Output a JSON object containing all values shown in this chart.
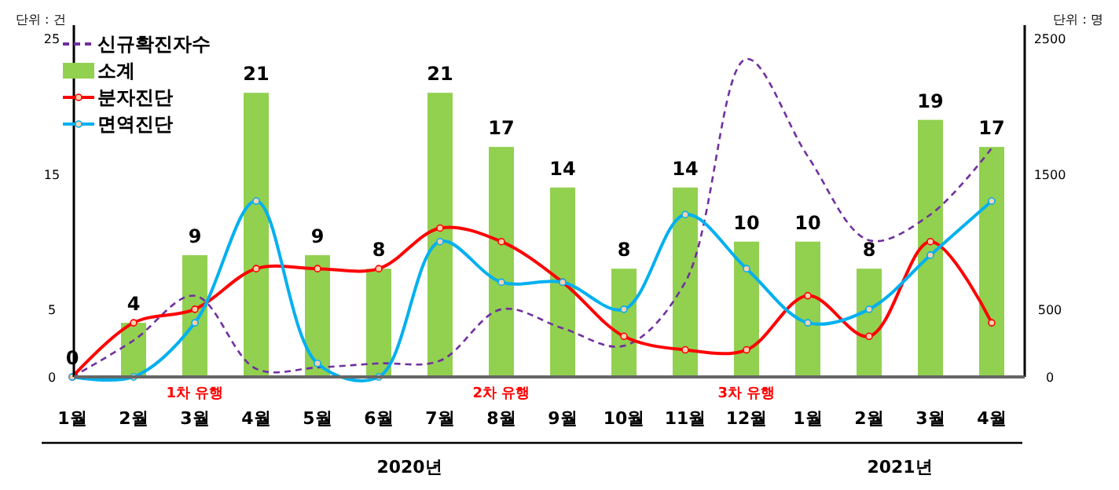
{
  "chart_data": {
    "type": "bar",
    "ylabel": "단위 : 건",
    "y2label": "단위 : 명",
    "categories": [
      "1월",
      "2월",
      "3월",
      "4월",
      "5월",
      "6월",
      "7월",
      "8월",
      "9월",
      "10월",
      "11월",
      "12월",
      "1월",
      "2월",
      "3월",
      "4월"
    ],
    "series": [
      {
        "name": "신규확진자수",
        "type": "line",
        "axis": "y2",
        "color": "#7030a0",
        "line_style": "dashed",
        "marker": "none",
        "values": [
          0,
          270,
          600,
          60,
          70,
          100,
          120,
          500,
          360,
          230,
          700,
          2350,
          1630,
          1010,
          1200,
          1690
        ]
      },
      {
        "name": "소계",
        "color": "#92d050",
        "values": [
          0,
          4,
          9,
          21,
          9,
          8,
          21,
          17,
          14,
          8,
          14,
          10,
          10,
          8,
          19,
          17
        ],
        "value_labels": [
          "0",
          "4",
          "9",
          "21",
          "9",
          "8",
          "21",
          "17",
          "14",
          "8",
          "14",
          "10",
          "10",
          "8",
          "19",
          "17"
        ]
      },
      {
        "name": "분자진단",
        "type": "line",
        "color": "#ff0000",
        "marker": "circle",
        "line_style": "solid",
        "values": [
          0,
          4,
          5,
          8,
          8,
          8,
          11,
          10,
          7,
          3,
          2,
          2,
          6,
          3,
          10,
          4
        ]
      },
      {
        "name": "면역진단",
        "type": "line",
        "color": "#00b0f0",
        "marker": "circle",
        "line_style": "solid",
        "values": [
          0,
          0,
          4,
          13,
          1,
          0,
          10,
          7,
          7,
          5,
          12,
          8,
          4,
          5,
          9,
          13
        ]
      }
    ],
    "ylim": [
      0,
      26
    ],
    "yticks": [
      0,
      5,
      15,
      25
    ],
    "y2lim": [
      0,
      2600
    ],
    "y2ticks": [
      0,
      500,
      1500,
      2500
    ],
    "legend": "top left",
    "grid": false,
    "annotations": [
      "1차 유행",
      "2차 유행",
      "3차 유행",
      "2020년",
      "2021년"
    ]
  }
}
